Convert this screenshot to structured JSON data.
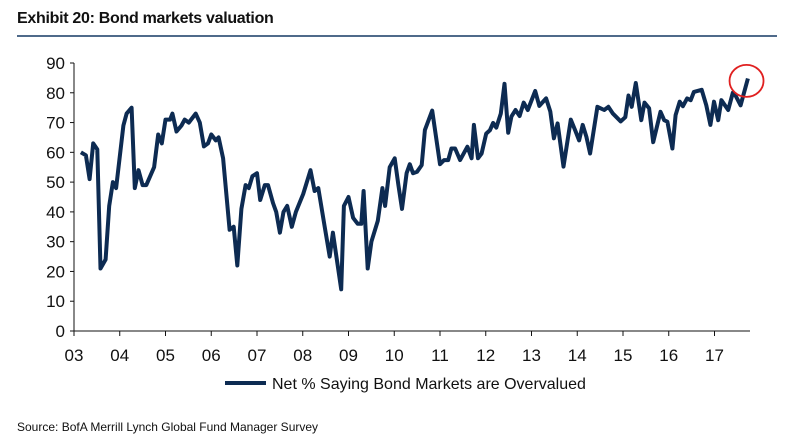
{
  "chart_data": {
    "type": "line",
    "title": "Exhibit 20: Bond markets valuation",
    "xlabel": "",
    "ylabel": "",
    "ylim": [
      0,
      90
    ],
    "xlim": [
      2003,
      2017.8
    ],
    "y_ticks": [
      "0",
      "10",
      "20",
      "30",
      "40",
      "50",
      "60",
      "70",
      "80",
      "90"
    ],
    "x_ticks": [
      "03",
      "04",
      "05",
      "06",
      "07",
      "08",
      "09",
      "10",
      "11",
      "12",
      "13",
      "14",
      "15",
      "16",
      "17"
    ],
    "grid": false,
    "legend_position": "bottom",
    "series": [
      {
        "name": "Net % Saying Bond Markets are Overvalued",
        "color": "#0d2b52",
        "points": [
          [
            2003.15,
            60
          ],
          [
            2003.26,
            59
          ],
          [
            2003.34,
            51
          ],
          [
            2003.42,
            63
          ],
          [
            2003.51,
            61
          ],
          [
            2003.58,
            21
          ],
          [
            2003.69,
            24
          ],
          [
            2003.77,
            42
          ],
          [
            2003.85,
            50
          ],
          [
            2003.92,
            48
          ],
          [
            2004.08,
            69
          ],
          [
            2004.15,
            73
          ],
          [
            2004.26,
            75
          ],
          [
            2004.33,
            48
          ],
          [
            2004.41,
            54
          ],
          [
            2004.5,
            49
          ],
          [
            2004.58,
            49
          ],
          [
            2004.75,
            55
          ],
          [
            2004.84,
            66
          ],
          [
            2004.92,
            63
          ],
          [
            2005.0,
            71
          ],
          [
            2005.1,
            71
          ],
          [
            2005.15,
            73
          ],
          [
            2005.24,
            67
          ],
          [
            2005.35,
            69
          ],
          [
            2005.42,
            71
          ],
          [
            2005.51,
            70
          ],
          [
            2005.66,
            73
          ],
          [
            2005.75,
            70
          ],
          [
            2005.84,
            62
          ],
          [
            2005.93,
            63
          ],
          [
            2006.0,
            66
          ],
          [
            2006.1,
            64
          ],
          [
            2006.16,
            65
          ],
          [
            2006.26,
            58
          ],
          [
            2006.4,
            34
          ],
          [
            2006.49,
            35
          ],
          [
            2006.57,
            22
          ],
          [
            2006.66,
            41
          ],
          [
            2006.75,
            49
          ],
          [
            2006.82,
            48
          ],
          [
            2006.9,
            52
          ],
          [
            2007.0,
            53
          ],
          [
            2007.07,
            44
          ],
          [
            2007.17,
            49
          ],
          [
            2007.24,
            49
          ],
          [
            2007.35,
            43
          ],
          [
            2007.42,
            40
          ],
          [
            2007.5,
            33
          ],
          [
            2007.58,
            40
          ],
          [
            2007.66,
            42
          ],
          [
            2007.76,
            35
          ],
          [
            2007.85,
            40
          ],
          [
            2008.01,
            46
          ],
          [
            2008.17,
            54
          ],
          [
            2008.26,
            47
          ],
          [
            2008.34,
            48
          ],
          [
            2008.48,
            35
          ],
          [
            2008.59,
            25
          ],
          [
            2008.66,
            33
          ],
          [
            2008.84,
            14
          ],
          [
            2008.9,
            42
          ],
          [
            2009.0,
            45
          ],
          [
            2009.1,
            38
          ],
          [
            2009.2,
            36
          ],
          [
            2009.28,
            36
          ],
          [
            2009.33,
            47
          ],
          [
            2009.42,
            21
          ],
          [
            2009.5,
            30
          ],
          [
            2009.64,
            37
          ],
          [
            2009.74,
            48
          ],
          [
            2009.8,
            42
          ],
          [
            2009.9,
            55
          ],
          [
            2010.01,
            58
          ],
          [
            2010.09,
            49
          ],
          [
            2010.17,
            41
          ],
          [
            2010.27,
            53
          ],
          [
            2010.34,
            56
          ],
          [
            2010.41,
            53
          ],
          [
            2010.5,
            53.5
          ],
          [
            2010.6,
            55.7
          ],
          [
            2010.67,
            67.5
          ],
          [
            2010.83,
            74
          ],
          [
            2011.0,
            56
          ],
          [
            2011.09,
            57.4
          ],
          [
            2011.18,
            57.4
          ],
          [
            2011.25,
            61.3
          ],
          [
            2011.33,
            61.3
          ],
          [
            2011.44,
            57.4
          ],
          [
            2011.6,
            61.9
          ],
          [
            2011.69,
            58
          ],
          [
            2011.74,
            69.2
          ],
          [
            2011.83,
            58
          ],
          [
            2011.91,
            59.6
          ],
          [
            2012.01,
            66.3
          ],
          [
            2012.09,
            67.4
          ],
          [
            2012.16,
            69.9
          ],
          [
            2012.23,
            68.3
          ],
          [
            2012.33,
            73
          ],
          [
            2012.41,
            83
          ],
          [
            2012.49,
            66.6
          ],
          [
            2012.56,
            72
          ],
          [
            2012.65,
            74.2
          ],
          [
            2012.74,
            72.2
          ],
          [
            2012.83,
            76.7
          ],
          [
            2012.92,
            74.2
          ],
          [
            2013.08,
            80.6
          ],
          [
            2013.17,
            75.6
          ],
          [
            2013.32,
            78.1
          ],
          [
            2013.41,
            73.7
          ],
          [
            2013.49,
            64.7
          ],
          [
            2013.57,
            69.7
          ],
          [
            2013.7,
            55.2
          ],
          [
            2013.86,
            71
          ],
          [
            2013.96,
            67.2
          ],
          [
            2014.04,
            64
          ],
          [
            2014.12,
            69.2
          ],
          [
            2014.2,
            65.2
          ],
          [
            2014.28,
            59.6
          ],
          [
            2014.44,
            75.3
          ],
          [
            2014.59,
            74.2
          ],
          [
            2014.68,
            75.3
          ],
          [
            2014.78,
            73
          ],
          [
            2014.95,
            70.4
          ],
          [
            2015.05,
            71.8
          ],
          [
            2015.12,
            79.1
          ],
          [
            2015.19,
            75.3
          ],
          [
            2015.28,
            83.3
          ],
          [
            2015.4,
            70.8
          ],
          [
            2015.47,
            76.7
          ],
          [
            2015.57,
            74.8
          ],
          [
            2015.66,
            63.4
          ],
          [
            2015.82,
            73.6
          ],
          [
            2015.9,
            70.8
          ],
          [
            2015.97,
            70.3
          ],
          [
            2016.08,
            61.3
          ],
          [
            2016.15,
            72.5
          ],
          [
            2016.24,
            77
          ],
          [
            2016.31,
            75.5
          ],
          [
            2016.4,
            78.1
          ],
          [
            2016.48,
            77.5
          ],
          [
            2016.55,
            80.3
          ],
          [
            2016.72,
            81
          ],
          [
            2016.82,
            75.8
          ],
          [
            2016.91,
            69.2
          ],
          [
            2016.99,
            77
          ],
          [
            2017.08,
            70.8
          ],
          [
            2017.15,
            77.5
          ],
          [
            2017.3,
            74.2
          ],
          [
            2017.4,
            80
          ],
          [
            2017.46,
            79.1
          ],
          [
            2017.57,
            75.8
          ],
          [
            2017.73,
            84.8
          ]
        ]
      }
    ],
    "annotations": [
      {
        "type": "circle",
        "color": "#e02020",
        "at": [
          2017.7,
          84
        ]
      }
    ]
  },
  "source": "Source: BofA Merrill Lynch Global Fund Manager Survey"
}
